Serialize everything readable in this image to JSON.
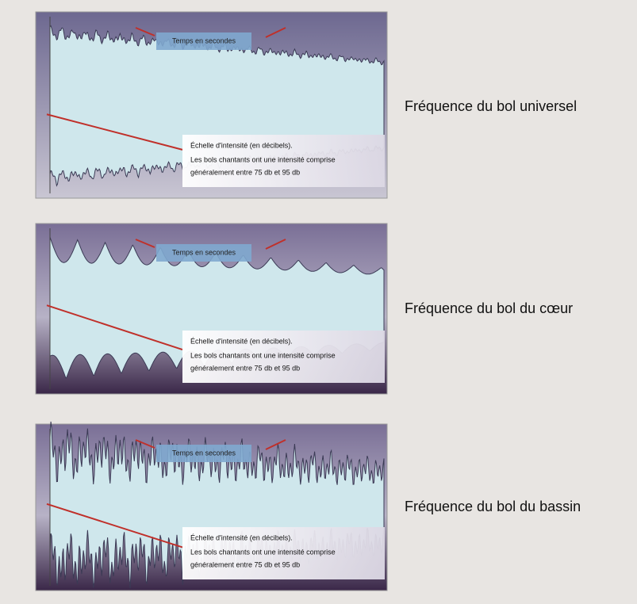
{
  "panels": [
    {
      "caption": "Fréquence du bol universel",
      "time_label": "Temps en secondes",
      "scale_title": "Échelle d'intensité (en décibels).",
      "scale_text": [
        "Les bols chantants ont une intensité comprise",
        "généralement entre 75 db et 95 db"
      ]
    },
    {
      "caption": "Fréquence du bol du cœur",
      "time_label": "Temps en secondes",
      "scale_title": "Échelle d'intensité (en décibels).",
      "scale_text": [
        "Les bols chantants ont une intensité comprise",
        "généralement entre 75 db et 95 db"
      ]
    },
    {
      "caption": "Fréquence du bol du bassin",
      "time_label": "Temps en secondes",
      "scale_title": "Échelle d'intensité (en décibels).",
      "scale_text": [
        "Les bols chantants ont une intensité comprise",
        "généralement entre 75 db et 95 db"
      ]
    }
  ]
}
